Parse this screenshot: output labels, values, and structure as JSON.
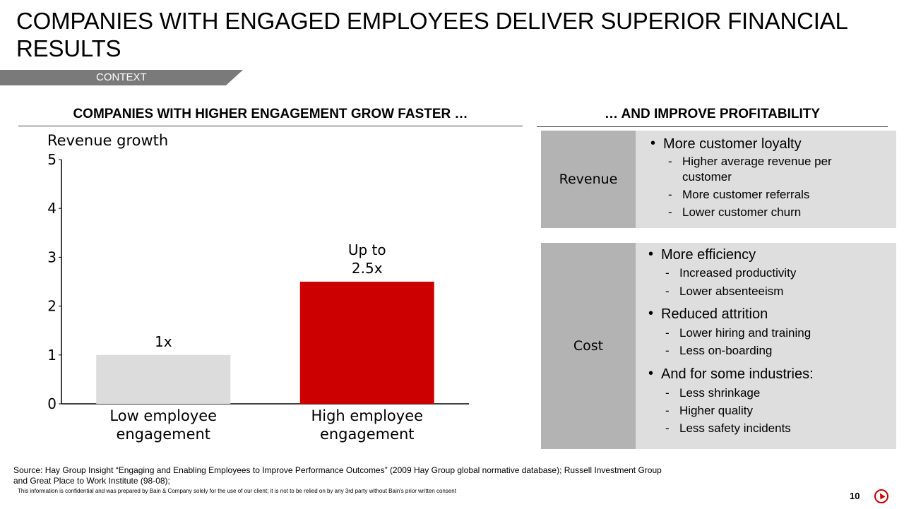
{
  "slide": {
    "title": "COMPANIES WITH ENGAGED EMPLOYEES DELIVER SUPERIOR FINANCIAL RESULTS",
    "ribbon_label": "CONTEXT",
    "left_heading": "COMPANIES WITH HIGHER ENGAGEMENT GROW FASTER …",
    "right_heading": "… AND IMPROVE PROFITABILITY",
    "source": "Source:  Hay Group Insight “Engaging and Enabling Employees to Improve Performance Outcomes” (2009 Hay Group global normative database); Russell Investment Group and Great Place to Work Institute (98-08);",
    "confidential": "This information is confidential and was prepared by Bain & Company solely for the use of our client; it is not to be relied on by any 3rd party without Bain's prior written consent",
    "page_number": "10"
  },
  "colors": {
    "low_bar": "#dcdcdc",
    "high_bar": "#cc0000",
    "ribbon": "#7a7a7a",
    "label_panel": "#b3b3b3",
    "list_panel": "#dedede"
  },
  "chart_data": {
    "type": "bar",
    "ylabel": "Revenue growth",
    "ylim": [
      0,
      5
    ],
    "yticks": [
      "0",
      "1",
      "2",
      "3",
      "4",
      "5"
    ],
    "categories": [
      "Low employee engagement",
      "High employee engagement"
    ],
    "category_lines": [
      [
        "Low employee",
        "engagement"
      ],
      [
        "High employee",
        "engagement"
      ]
    ],
    "values": [
      1,
      2.5
    ],
    "data_labels": [
      [
        "1x"
      ],
      [
        "Up to",
        "2.5x"
      ]
    ],
    "grid": false
  },
  "profitability": {
    "revenue": {
      "label": "Revenue",
      "items": [
        {
          "text": "More customer loyalty",
          "subs": [
            "Higher average revenue per customer",
            "More customer referrals",
            "Lower customer churn"
          ]
        }
      ]
    },
    "cost": {
      "label": "Cost",
      "items": [
        {
          "text": "More efficiency",
          "subs": [
            "Increased productivity",
            "Lower absenteeism"
          ]
        },
        {
          "text": "Reduced attrition",
          "subs": [
            "Lower hiring and training",
            "Less on-boarding"
          ]
        },
        {
          "text": "And for some industries:",
          "subs": [
            "Less shrinkage",
            "Higher quality",
            "Less safety incidents"
          ]
        }
      ]
    }
  }
}
